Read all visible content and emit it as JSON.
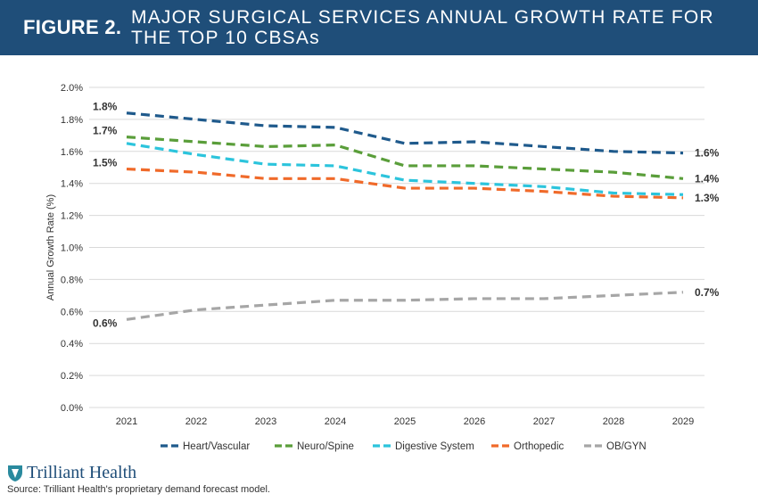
{
  "header": {
    "figure_label": "FIGURE 2.",
    "title": "MAJOR SURGICAL SERVICES ANNUAL GROWTH RATE FOR THE TOP 10 CBSAs",
    "bg_color": "#1f4e79"
  },
  "footer": {
    "logo_text": "Trilliant Health",
    "logo_icon": "trilliant-shield-icon",
    "source": "Source: Trilliant Health's proprietary demand forecast model."
  },
  "chart_data": {
    "type": "line",
    "title": "MAJOR SURGICAL SERVICES ANNUAL GROWTH RATE FOR THE TOP 10 CBSAs",
    "xlabel": "",
    "ylabel": "Annual Growth Rate (%)",
    "categories": [
      "2021",
      "2022",
      "2023",
      "2024",
      "2025",
      "2026",
      "2027",
      "2028",
      "2029"
    ],
    "ylim": [
      0,
      2.0
    ],
    "yticks": [
      "0.0%",
      "0.2%",
      "0.4%",
      "0.6%",
      "0.8%",
      "1.0%",
      "1.2%",
      "1.4%",
      "1.6%",
      "1.8%",
      "2.0%"
    ],
    "grid": true,
    "legend_position": "bottom",
    "line_style": "dashed",
    "series": [
      {
        "name": "Heart/Vascular",
        "color": "#1f5a8c",
        "values": [
          1.84,
          1.8,
          1.76,
          1.75,
          1.65,
          1.66,
          1.63,
          1.6,
          1.59
        ],
        "start_label": "1.8%",
        "end_label": "1.6%"
      },
      {
        "name": "Neuro/Spine",
        "color": "#5a9e3a",
        "values": [
          1.69,
          1.66,
          1.63,
          1.64,
          1.51,
          1.51,
          1.49,
          1.47,
          1.43
        ],
        "start_label": "1.7%",
        "end_label": "1.4%"
      },
      {
        "name": "Digestive System",
        "color": "#2cc4dc",
        "values": [
          1.65,
          1.58,
          1.52,
          1.51,
          1.42,
          1.4,
          1.38,
          1.34,
          1.33
        ],
        "start_label": "",
        "end_label": ""
      },
      {
        "name": "Orthopedic",
        "color": "#f06a2a",
        "values": [
          1.49,
          1.47,
          1.43,
          1.43,
          1.37,
          1.37,
          1.35,
          1.32,
          1.31
        ],
        "start_label": "1.5%",
        "end_label": "1.3%"
      },
      {
        "name": "OB/GYN",
        "color": "#a6a6a6",
        "values": [
          0.55,
          0.61,
          0.64,
          0.67,
          0.67,
          0.68,
          0.68,
          0.7,
          0.72
        ],
        "start_label": "0.6%",
        "end_label": "0.7%"
      }
    ]
  }
}
